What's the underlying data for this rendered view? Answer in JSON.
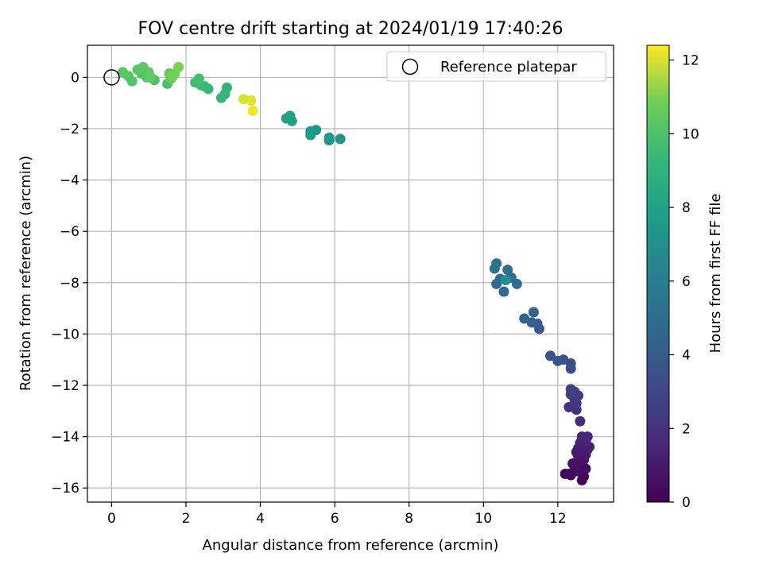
{
  "chart_data": {
    "type": "scatter",
    "title": "FOV centre drift starting at 2024/01/19 17:40:26",
    "xlabel": "Angular distance from reference (arcmin)",
    "ylabel": "Rotation from reference (arcmin)",
    "xlim": [
      -0.65,
      13.5
    ],
    "ylim": [
      -16.55,
      1.25
    ],
    "xticks": [
      0,
      2,
      4,
      6,
      8,
      10,
      12
    ],
    "yticks": [
      0,
      -2,
      -4,
      -6,
      -8,
      -10,
      -12,
      -14,
      -16
    ],
    "xtick_labels": [
      "0",
      "2",
      "4",
      "6",
      "8",
      "10",
      "12"
    ],
    "ytick_labels": [
      "0",
      "−2",
      "−4",
      "−6",
      "−8",
      "−10",
      "−12",
      "−14",
      "−16"
    ],
    "grid": true,
    "colormap": "viridis",
    "colorbar": {
      "label": "Hours from first FF file",
      "range": [
        0,
        12.4
      ],
      "ticks": [
        0,
        2,
        4,
        6,
        8,
        10,
        12
      ],
      "tick_labels": [
        "0",
        "2",
        "4",
        "6",
        "8",
        "10",
        "12"
      ]
    },
    "legend": {
      "placement": "top-right",
      "entries": [
        "Reference platepar"
      ]
    },
    "reference_point": {
      "x": 0,
      "y": 0
    },
    "points": [
      {
        "x": 12.35,
        "y": -15.5,
        "h": 0.05
      },
      {
        "x": 12.2,
        "y": -15.45,
        "h": 0.1
      },
      {
        "x": 12.45,
        "y": -15.35,
        "h": 0.15
      },
      {
        "x": 12.65,
        "y": -15.7,
        "h": 0.2
      },
      {
        "x": 12.7,
        "y": -15.55,
        "h": 0.25
      },
      {
        "x": 12.3,
        "y": -15.45,
        "h": 0.3
      },
      {
        "x": 12.55,
        "y": -15.35,
        "h": 0.4
      },
      {
        "x": 12.75,
        "y": -15.25,
        "h": 0.45
      },
      {
        "x": 12.45,
        "y": -15.15,
        "h": 0.5
      },
      {
        "x": 12.6,
        "y": -15.0,
        "h": 0.6
      },
      {
        "x": 12.4,
        "y": -15.05,
        "h": 0.65
      },
      {
        "x": 12.7,
        "y": -14.9,
        "h": 0.7
      },
      {
        "x": 12.55,
        "y": -14.75,
        "h": 0.8
      },
      {
        "x": 12.75,
        "y": -14.7,
        "h": 0.85
      },
      {
        "x": 12.5,
        "y": -14.6,
        "h": 0.9
      },
      {
        "x": 12.65,
        "y": -14.55,
        "h": 1.0
      },
      {
        "x": 12.8,
        "y": -14.5,
        "h": 1.05
      },
      {
        "x": 12.55,
        "y": -14.45,
        "h": 1.1
      },
      {
        "x": 12.7,
        "y": -14.35,
        "h": 1.2
      },
      {
        "x": 12.85,
        "y": -14.4,
        "h": 1.25
      },
      {
        "x": 12.6,
        "y": -14.25,
        "h": 1.3
      },
      {
        "x": 12.75,
        "y": -14.15,
        "h": 1.4
      },
      {
        "x": 12.8,
        "y": -14.0,
        "h": 1.45
      },
      {
        "x": 12.65,
        "y": -14.0,
        "h": 1.5
      },
      {
        "x": 12.6,
        "y": -13.4,
        "h": 1.8
      },
      {
        "x": 12.5,
        "y": -12.95,
        "h": 2.0
      },
      {
        "x": 12.3,
        "y": -12.85,
        "h": 2.1
      },
      {
        "x": 12.5,
        "y": -12.7,
        "h": 2.2
      },
      {
        "x": 12.45,
        "y": -12.55,
        "h": 2.3
      },
      {
        "x": 12.55,
        "y": -12.4,
        "h": 2.4
      },
      {
        "x": 12.35,
        "y": -12.35,
        "h": 2.5
      },
      {
        "x": 12.45,
        "y": -12.25,
        "h": 2.6
      },
      {
        "x": 12.35,
        "y": -12.15,
        "h": 2.7
      },
      {
        "x": 12.35,
        "y": -11.35,
        "h": 3.3
      },
      {
        "x": 12.35,
        "y": -11.15,
        "h": 3.4
      },
      {
        "x": 12.15,
        "y": -11.0,
        "h": 3.5
      },
      {
        "x": 12.0,
        "y": -11.05,
        "h": 3.6
      },
      {
        "x": 11.8,
        "y": -10.85,
        "h": 3.7
      },
      {
        "x": 11.5,
        "y": -9.8,
        "h": 4.0
      },
      {
        "x": 11.45,
        "y": -9.6,
        "h": 4.1
      },
      {
        "x": 11.3,
        "y": -9.55,
        "h": 4.2
      },
      {
        "x": 11.35,
        "y": -9.15,
        "h": 4.3
      },
      {
        "x": 11.1,
        "y": -9.4,
        "h": 4.4
      },
      {
        "x": 10.55,
        "y": -8.35,
        "h": 4.6
      },
      {
        "x": 10.35,
        "y": -8.05,
        "h": 4.7
      },
      {
        "x": 10.45,
        "y": -7.85,
        "h": 4.8
      },
      {
        "x": 10.9,
        "y": -8.05,
        "h": 4.9
      },
      {
        "x": 10.75,
        "y": -7.8,
        "h": 5.0
      },
      {
        "x": 10.65,
        "y": -7.5,
        "h": 5.1
      },
      {
        "x": 10.35,
        "y": -7.25,
        "h": 5.2
      },
      {
        "x": 10.3,
        "y": -7.45,
        "h": 5.3
      },
      {
        "x": 10.6,
        "y": -7.9,
        "h": 6.9
      },
      {
        "x": 6.15,
        "y": -2.4,
        "h": 7.1
      },
      {
        "x": 5.85,
        "y": -2.45,
        "h": 7.2
      },
      {
        "x": 5.85,
        "y": -2.35,
        "h": 7.3
      },
      {
        "x": 5.5,
        "y": -2.05,
        "h": 7.4
      },
      {
        "x": 5.35,
        "y": -2.1,
        "h": 7.5
      },
      {
        "x": 5.35,
        "y": -2.25,
        "h": 7.6
      },
      {
        "x": 4.85,
        "y": -1.7,
        "h": 7.8
      },
      {
        "x": 4.7,
        "y": -1.6,
        "h": 7.9
      },
      {
        "x": 4.8,
        "y": -1.5,
        "h": 8.0
      },
      {
        "x": 3.1,
        "y": -0.4,
        "h": 9.0
      },
      {
        "x": 3.05,
        "y": -0.65,
        "h": 9.1
      },
      {
        "x": 2.95,
        "y": -0.8,
        "h": 9.2
      },
      {
        "x": 2.6,
        "y": -0.45,
        "h": 9.3
      },
      {
        "x": 2.5,
        "y": -0.35,
        "h": 9.4
      },
      {
        "x": 2.4,
        "y": -0.3,
        "h": 9.5
      },
      {
        "x": 2.25,
        "y": -0.2,
        "h": 9.6
      },
      {
        "x": 2.35,
        "y": -0.05,
        "h": 9.7
      },
      {
        "x": 1.5,
        "y": -0.25,
        "h": 9.8
      },
      {
        "x": 1.15,
        "y": -0.1,
        "h": 9.9
      },
      {
        "x": 0.95,
        "y": 0.0,
        "h": 10.0
      },
      {
        "x": 0.8,
        "y": 0.15,
        "h": 10.1
      },
      {
        "x": 0.55,
        "y": -0.15,
        "h": 10.15
      },
      {
        "x": 0.45,
        "y": 0.05,
        "h": 10.2
      },
      {
        "x": 0.3,
        "y": 0.2,
        "h": 10.25
      },
      {
        "x": 0.7,
        "y": 0.3,
        "h": 10.3
      },
      {
        "x": 0.85,
        "y": 0.4,
        "h": 10.35
      },
      {
        "x": 1.0,
        "y": 0.2,
        "h": 10.4
      },
      {
        "x": 1.05,
        "y": 0.0,
        "h": 10.5
      },
      {
        "x": 1.55,
        "y": 0.15,
        "h": 10.6
      },
      {
        "x": 1.6,
        "y": -0.05,
        "h": 10.7
      },
      {
        "x": 1.7,
        "y": 0.15,
        "h": 10.8
      },
      {
        "x": 1.65,
        "y": 0.05,
        "h": 10.9
      },
      {
        "x": 1.8,
        "y": 0.4,
        "h": 11.0
      },
      {
        "x": 3.55,
        "y": -0.85,
        "h": 12.0
      },
      {
        "x": 3.75,
        "y": -0.9,
        "h": 12.1
      },
      {
        "x": 3.8,
        "y": -1.3,
        "h": 12.3
      }
    ]
  }
}
